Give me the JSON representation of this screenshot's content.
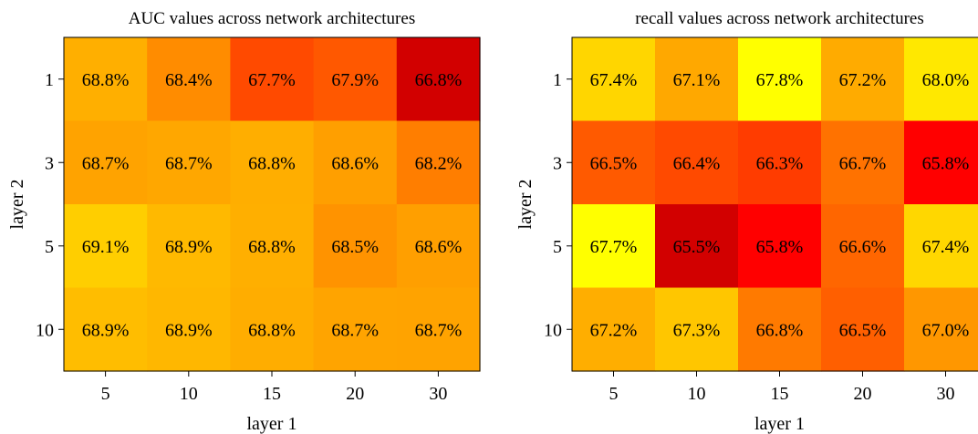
{
  "chart_data": [
    {
      "type": "heatmap",
      "title": "AUC values across network architectures",
      "xlabel": "layer 1",
      "ylabel": "layer 2",
      "x_categories": [
        "5",
        "10",
        "15",
        "20",
        "30"
      ],
      "y_categories": [
        "1",
        "3",
        "5",
        "10"
      ],
      "values": [
        [
          68.8,
          68.4,
          67.7,
          67.9,
          66.8
        ],
        [
          68.7,
          68.7,
          68.8,
          68.6,
          68.2
        ],
        [
          69.1,
          68.9,
          68.8,
          68.5,
          68.6
        ],
        [
          68.9,
          68.9,
          68.8,
          68.7,
          68.7
        ]
      ],
      "value_format": "%",
      "colormap": "autumn",
      "colors": [
        [
          "#ffaf00",
          "#ff8c00",
          "#ff4a00",
          "#ff5800",
          "#d20000"
        ],
        [
          "#ffa300",
          "#ffa700",
          "#ffae00",
          "#ff9f00",
          "#ff7e00"
        ],
        [
          "#ffce00",
          "#ffb900",
          "#ffaf00",
          "#ff9300",
          "#ff9f00"
        ],
        [
          "#ffbd00",
          "#ffb700",
          "#ffad00",
          "#ffa400",
          "#ffa300"
        ]
      ],
      "grid": false
    },
    {
      "type": "heatmap",
      "title": "recall values across network architectures",
      "xlabel": "layer 1",
      "ylabel": "layer 2",
      "x_categories": [
        "5",
        "10",
        "15",
        "20",
        "30"
      ],
      "y_categories": [
        "1",
        "3",
        "5",
        "10"
      ],
      "values": [
        [
          67.4,
          67.1,
          67.8,
          67.2,
          68.0
        ],
        [
          66.5,
          66.4,
          66.3,
          66.7,
          65.8
        ],
        [
          67.7,
          65.5,
          65.8,
          66.6,
          67.4
        ],
        [
          67.2,
          67.3,
          66.8,
          66.5,
          67.0
        ]
      ],
      "value_format": "%",
      "colormap": "autumn",
      "colors": [
        [
          "#ffd600",
          "#ffa800",
          "#ffff00",
          "#ffab00",
          "#ffe800"
        ],
        [
          "#ff5a00",
          "#ff4a00",
          "#ff3c00",
          "#ff7200",
          "#ff0000"
        ],
        [
          "#ffff00",
          "#d20000",
          "#ff0000",
          "#ff6600",
          "#ffd700"
        ],
        [
          "#ffae00",
          "#ffc600",
          "#ff7a00",
          "#ff5f00",
          "#ff9700"
        ]
      ],
      "grid": false
    }
  ]
}
